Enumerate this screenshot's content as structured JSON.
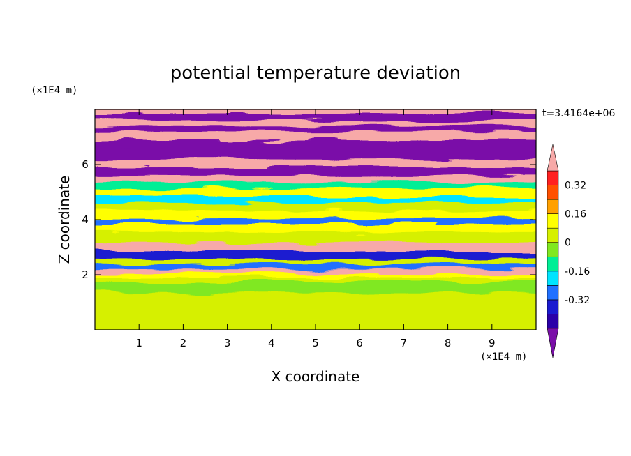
{
  "chart_data": {
    "type": "heatmap",
    "title": "potential temperature deviation",
    "xlabel": "X coordinate",
    "ylabel": "Z coordinate",
    "x_unit": "(×1E4 m)",
    "y_unit": "(×1E4 m)",
    "time_label": "t=3.4164e+06",
    "x_range": [
      0,
      10
    ],
    "y_range": [
      0,
      8
    ],
    "x_ticks": [
      1,
      2,
      3,
      4,
      5,
      6,
      7,
      8,
      9
    ],
    "y_ticks": [
      2,
      4,
      6
    ],
    "colorbar": {
      "tick_labels": [
        "0.32",
        "0.16",
        "0",
        "-0.16",
        "-0.32"
      ],
      "levels": [
        -0.48,
        -0.4,
        -0.32,
        -0.24,
        -0.16,
        -0.08,
        0,
        0.08,
        0.16,
        0.24,
        0.32,
        0.4,
        0.48
      ],
      "colors": [
        "#7a0fa8",
        "#2b00a8",
        "#1a1ad0",
        "#2070ff",
        "#00e4ff",
        "#00ee96",
        "#80e820",
        "#d6f000",
        "#ffff00",
        "#ffa000",
        "#ff5000",
        "#ff2020",
        "#f7a9a8"
      ],
      "extend": "both"
    },
    "layers": [
      {
        "z": 0.0,
        "v": 0.0
      },
      {
        "z": 0.8,
        "v": 0.02
      },
      {
        "z": 1.5,
        "v": -0.02
      },
      {
        "z": 1.9,
        "v": 0.03
      },
      {
        "z": 2.05,
        "v": 0.12
      },
      {
        "z": 2.2,
        "v": 0.45
      },
      {
        "z": 2.35,
        "v": -0.25
      },
      {
        "z": 2.55,
        "v": 0.05
      },
      {
        "z": 2.75,
        "v": -0.35
      },
      {
        "z": 3.0,
        "v": 0.45
      },
      {
        "z": 3.3,
        "v": 0.06
      },
      {
        "z": 3.7,
        "v": 0.12
      },
      {
        "z": 4.0,
        "v": -0.3
      },
      {
        "z": 4.2,
        "v": 0.1
      },
      {
        "z": 4.5,
        "v": 0.02
      },
      {
        "z": 4.75,
        "v": -0.2
      },
      {
        "z": 5.0,
        "v": 0.08
      },
      {
        "z": 5.3,
        "v": -0.1
      },
      {
        "z": 5.5,
        "v": 0.45
      },
      {
        "z": 5.75,
        "v": -0.5
      },
      {
        "z": 6.05,
        "v": 0.5
      },
      {
        "z": 6.35,
        "v": -0.5
      },
      {
        "z": 6.75,
        "v": -0.5
      },
      {
        "z": 7.05,
        "v": 0.5
      },
      {
        "z": 7.35,
        "v": -0.5
      },
      {
        "z": 7.55,
        "v": 0.5
      },
      {
        "z": 7.75,
        "v": -0.5
      },
      {
        "z": 8.0,
        "v": 0.5
      }
    ]
  }
}
